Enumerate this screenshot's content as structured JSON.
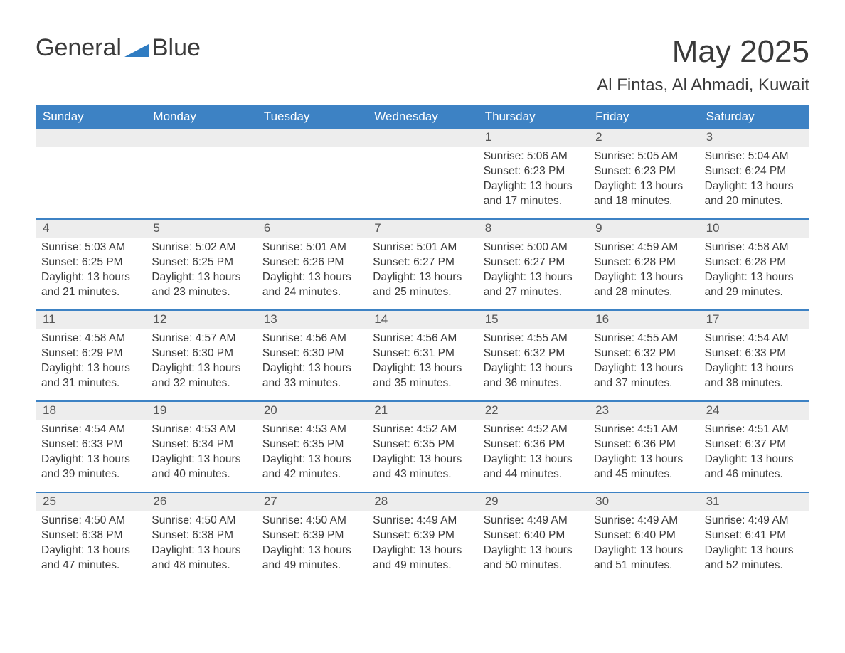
{
  "logo": {
    "word1": "General",
    "word2": "Blue"
  },
  "title": "May 2025",
  "location": "Al Fintas, Al Ahmadi, Kuwait",
  "colors": {
    "header_bg": "#3d82c4",
    "header_fg": "#ffffff",
    "date_bar_bg": "#ededed",
    "text": "#3a3a3a",
    "rule": "#3d82c4",
    "logo_gray": "#3b3b3b",
    "logo_blue": "#2f7cc2"
  },
  "typography": {
    "title_fontsize": 44,
    "location_fontsize": 24,
    "dow_fontsize": 17,
    "date_fontsize": 17,
    "body_fontsize": 15.5
  },
  "dow": [
    "Sunday",
    "Monday",
    "Tuesday",
    "Wednesday",
    "Thursday",
    "Friday",
    "Saturday"
  ],
  "weeks": [
    [
      null,
      null,
      null,
      null,
      {
        "date": "1",
        "sunrise": "5:06 AM",
        "sunset": "6:23 PM",
        "daylight": "13 hours and 17 minutes."
      },
      {
        "date": "2",
        "sunrise": "5:05 AM",
        "sunset": "6:23 PM",
        "daylight": "13 hours and 18 minutes."
      },
      {
        "date": "3",
        "sunrise": "5:04 AM",
        "sunset": "6:24 PM",
        "daylight": "13 hours and 20 minutes."
      }
    ],
    [
      {
        "date": "4",
        "sunrise": "5:03 AM",
        "sunset": "6:25 PM",
        "daylight": "13 hours and 21 minutes."
      },
      {
        "date": "5",
        "sunrise": "5:02 AM",
        "sunset": "6:25 PM",
        "daylight": "13 hours and 23 minutes."
      },
      {
        "date": "6",
        "sunrise": "5:01 AM",
        "sunset": "6:26 PM",
        "daylight": "13 hours and 24 minutes."
      },
      {
        "date": "7",
        "sunrise": "5:01 AM",
        "sunset": "6:27 PM",
        "daylight": "13 hours and 25 minutes."
      },
      {
        "date": "8",
        "sunrise": "5:00 AM",
        "sunset": "6:27 PM",
        "daylight": "13 hours and 27 minutes."
      },
      {
        "date": "9",
        "sunrise": "4:59 AM",
        "sunset": "6:28 PM",
        "daylight": "13 hours and 28 minutes."
      },
      {
        "date": "10",
        "sunrise": "4:58 AM",
        "sunset": "6:28 PM",
        "daylight": "13 hours and 29 minutes."
      }
    ],
    [
      {
        "date": "11",
        "sunrise": "4:58 AM",
        "sunset": "6:29 PM",
        "daylight": "13 hours and 31 minutes."
      },
      {
        "date": "12",
        "sunrise": "4:57 AM",
        "sunset": "6:30 PM",
        "daylight": "13 hours and 32 minutes."
      },
      {
        "date": "13",
        "sunrise": "4:56 AM",
        "sunset": "6:30 PM",
        "daylight": "13 hours and 33 minutes."
      },
      {
        "date": "14",
        "sunrise": "4:56 AM",
        "sunset": "6:31 PM",
        "daylight": "13 hours and 35 minutes."
      },
      {
        "date": "15",
        "sunrise": "4:55 AM",
        "sunset": "6:32 PM",
        "daylight": "13 hours and 36 minutes."
      },
      {
        "date": "16",
        "sunrise": "4:55 AM",
        "sunset": "6:32 PM",
        "daylight": "13 hours and 37 minutes."
      },
      {
        "date": "17",
        "sunrise": "4:54 AM",
        "sunset": "6:33 PM",
        "daylight": "13 hours and 38 minutes."
      }
    ],
    [
      {
        "date": "18",
        "sunrise": "4:54 AM",
        "sunset": "6:33 PM",
        "daylight": "13 hours and 39 minutes."
      },
      {
        "date": "19",
        "sunrise": "4:53 AM",
        "sunset": "6:34 PM",
        "daylight": "13 hours and 40 minutes."
      },
      {
        "date": "20",
        "sunrise": "4:53 AM",
        "sunset": "6:35 PM",
        "daylight": "13 hours and 42 minutes."
      },
      {
        "date": "21",
        "sunrise": "4:52 AM",
        "sunset": "6:35 PM",
        "daylight": "13 hours and 43 minutes."
      },
      {
        "date": "22",
        "sunrise": "4:52 AM",
        "sunset": "6:36 PM",
        "daylight": "13 hours and 44 minutes."
      },
      {
        "date": "23",
        "sunrise": "4:51 AM",
        "sunset": "6:36 PM",
        "daylight": "13 hours and 45 minutes."
      },
      {
        "date": "24",
        "sunrise": "4:51 AM",
        "sunset": "6:37 PM",
        "daylight": "13 hours and 46 minutes."
      }
    ],
    [
      {
        "date": "25",
        "sunrise": "4:50 AM",
        "sunset": "6:38 PM",
        "daylight": "13 hours and 47 minutes."
      },
      {
        "date": "26",
        "sunrise": "4:50 AM",
        "sunset": "6:38 PM",
        "daylight": "13 hours and 48 minutes."
      },
      {
        "date": "27",
        "sunrise": "4:50 AM",
        "sunset": "6:39 PM",
        "daylight": "13 hours and 49 minutes."
      },
      {
        "date": "28",
        "sunrise": "4:49 AM",
        "sunset": "6:39 PM",
        "daylight": "13 hours and 49 minutes."
      },
      {
        "date": "29",
        "sunrise": "4:49 AM",
        "sunset": "6:40 PM",
        "daylight": "13 hours and 50 minutes."
      },
      {
        "date": "30",
        "sunrise": "4:49 AM",
        "sunset": "6:40 PM",
        "daylight": "13 hours and 51 minutes."
      },
      {
        "date": "31",
        "sunrise": "4:49 AM",
        "sunset": "6:41 PM",
        "daylight": "13 hours and 52 minutes."
      }
    ]
  ],
  "labels": {
    "sunrise_prefix": "Sunrise: ",
    "sunset_prefix": "Sunset: ",
    "daylight_prefix": "Daylight: "
  }
}
